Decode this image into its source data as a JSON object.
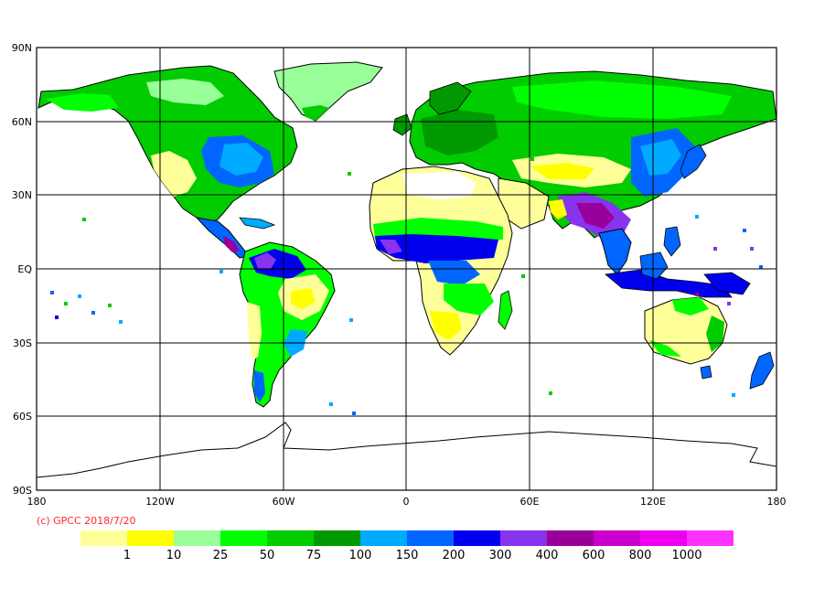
{
  "map": {
    "lat_ticks": [
      "90N",
      "60N",
      "30N",
      "EQ",
      "30S",
      "60S",
      "90S"
    ],
    "lon_ticks": [
      "180",
      "120W",
      "60W",
      "0",
      "60E",
      "120E",
      "180"
    ],
    "copyright": "(c) GPCC 2018/7/20",
    "projection": "equirectangular",
    "grid": true
  },
  "legend": {
    "colors": [
      "#ffff9a",
      "#ffff00",
      "#99ff99",
      "#00ff00",
      "#00cc00",
      "#009900",
      "#00aaff",
      "#0066ff",
      "#0000ee",
      "#8833ee",
      "#990099",
      "#cc00cc",
      "#ee00ee",
      "#ff33ff"
    ],
    "labels": [
      "1",
      "10",
      "25",
      "50",
      "75",
      "100",
      "150",
      "200",
      "300",
      "400",
      "600",
      "800",
      "1000"
    ]
  }
}
